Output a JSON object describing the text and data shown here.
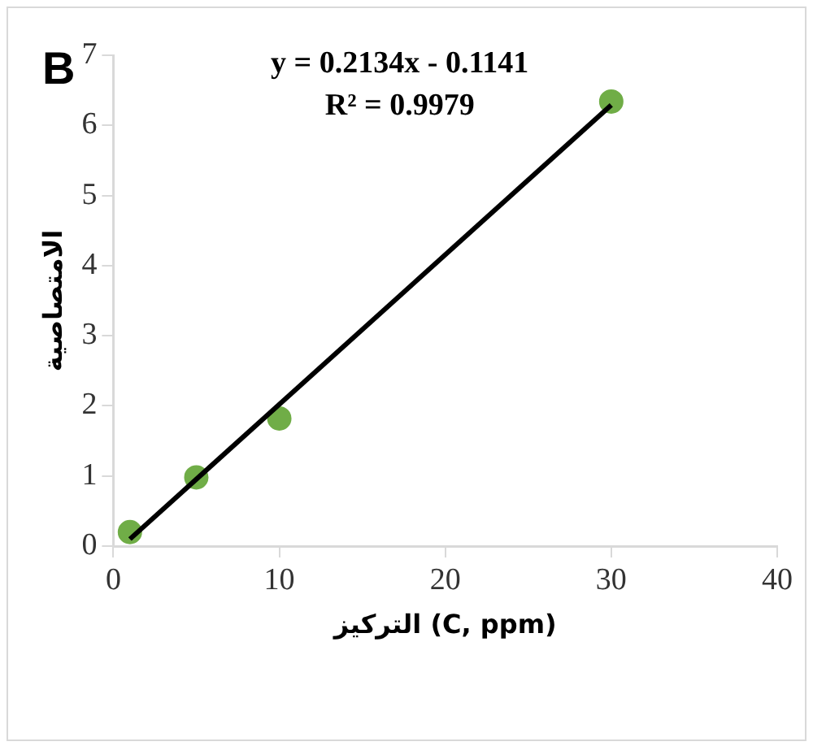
{
  "chart_data": {
    "type": "scatter",
    "xlabel": "التركيز (C, ppm)",
    "ylabel": "الامتصاصية",
    "annotations": [
      "B",
      "y = 0.2134x - 0.1141",
      "R² = 0.9979"
    ],
    "series": [
      {
        "color": "#70ad47",
        "marker": "circle",
        "x": [
          1,
          5,
          10,
          30
        ],
        "values": [
          0.2,
          0.98,
          1.82,
          6.34
        ]
      },
      {
        "type": "line",
        "color": "#000000",
        "marker": "none",
        "x": [
          1,
          30
        ],
        "values": [
          0.1,
          6.29
        ]
      }
    ],
    "xlim": [
      0,
      40
    ],
    "xticks": [
      0,
      10,
      20,
      30,
      40
    ],
    "ylim": [
      0,
      7
    ],
    "yticks": [
      0,
      1,
      2,
      3,
      4,
      5,
      6,
      7
    ],
    "grid": false,
    "legend": false
  }
}
